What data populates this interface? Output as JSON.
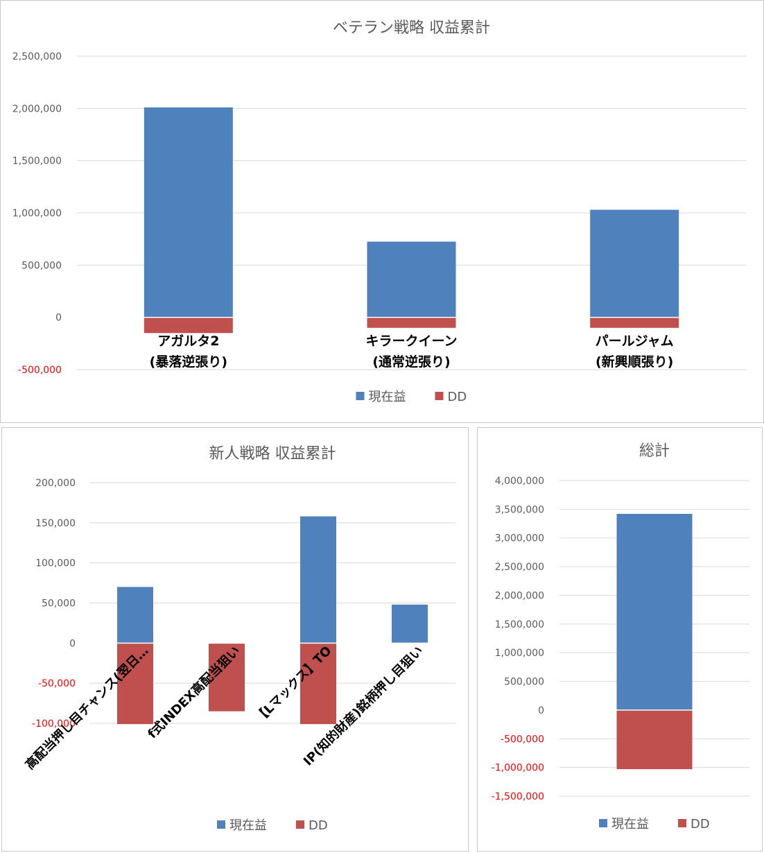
{
  "colors": {
    "current": "#4f81bd",
    "dd": "#c0504d",
    "negative_tick": "#ff0000"
  },
  "legend": {
    "current": "現在益",
    "dd": "DD"
  },
  "chart_data": [
    {
      "type": "bar",
      "title": "ベテラン戦略 収益累計",
      "categories": [
        [
          "アガルタ2",
          "(暴落逆張り)"
        ],
        [
          "キラークイーン",
          "(通常逆張り)"
        ],
        [
          "パールジャム",
          "(新興順張り)"
        ]
      ],
      "series": [
        {
          "name": "現在益",
          "values": [
            2010000,
            725000,
            1030000
          ]
        },
        {
          "name": "DD",
          "values": [
            -150000,
            -100000,
            -100000
          ]
        }
      ],
      "ylim": [
        -500000,
        2500000
      ],
      "yticks": [
        2500000,
        2000000,
        1500000,
        1000000,
        500000,
        0,
        -500000
      ],
      "ytick_labels": [
        "2,500,000",
        "2,000,000",
        "1,500,000",
        "1,000,000",
        "500,000",
        "0",
        "-500,000"
      ],
      "grid": true,
      "legend_position": "bottom"
    },
    {
      "type": "bar",
      "title": "新人戦略 収益累計",
      "categories": [
        "高配当押し目チャンス(翌日…",
        "f式INDEX高配当狙い",
        "【Lマックス】TO",
        "IP(知的財産)銘柄押し目狙い"
      ],
      "series": [
        {
          "name": "現在益",
          "values": [
            70000,
            0,
            158000,
            48000
          ]
        },
        {
          "name": "DD",
          "values": [
            -101000,
            -85000,
            -101000,
            0
          ]
        }
      ],
      "ylim": [
        -100000,
        200000
      ],
      "yticks": [
        200000,
        150000,
        100000,
        50000,
        0,
        -50000,
        -100000
      ],
      "ytick_labels": [
        "200,000",
        "150,000",
        "100,000",
        "50,000",
        "0",
        "-50,000",
        "-100,000"
      ],
      "grid": true,
      "legend_position": "bottom"
    },
    {
      "type": "bar",
      "title": "総計",
      "categories": [
        ""
      ],
      "series": [
        {
          "name": "現在益",
          "values": [
            3420000
          ]
        },
        {
          "name": "DD",
          "values": [
            -1030000
          ]
        }
      ],
      "ylim": [
        -1500000,
        4000000
      ],
      "yticks": [
        4000000,
        3500000,
        3000000,
        2500000,
        2000000,
        1500000,
        1000000,
        500000,
        0,
        -500000,
        -1000000,
        -1500000
      ],
      "ytick_labels": [
        "4,000,000",
        "3,500,000",
        "3,000,000",
        "2,500,000",
        "2,000,000",
        "1,500,000",
        "1,000,000",
        "500,000",
        "0",
        "-500,000",
        "-1,000,000",
        "-1,500,000"
      ],
      "grid": true,
      "legend_position": "bottom"
    }
  ]
}
